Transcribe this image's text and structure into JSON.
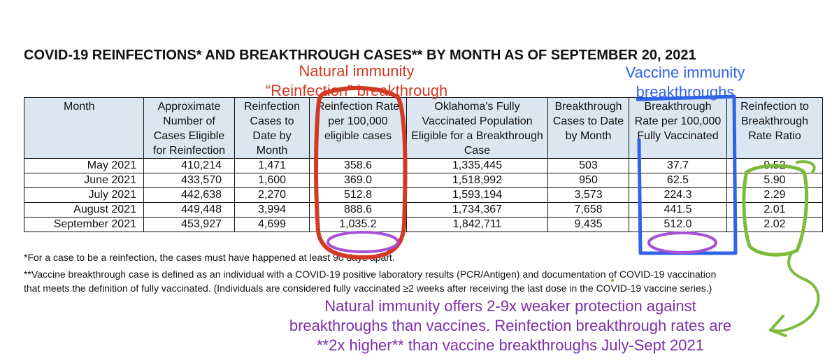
{
  "title": "COVID-19 REINFECTIONS* AND BREAKTHROUGH CASES** BY MONTH AS OF SEPTEMBER 20, 2021",
  "table": {
    "headers": [
      "Month",
      "Approximate Number of Cases Eligible for Reinfection",
      "Reinfection Cases to Date by Month",
      "Reinfection Rate per 100,000 eligible cases",
      "Oklahoma's Fully Vaccinated Population Eligible for a Breakthrough Case",
      "Breakthrough Cases to Date by Month",
      "Breakthrough Rate per 100,000 Fully Vaccinated",
      "Reinfection to Breakthrough Rate Ratio"
    ],
    "rows": [
      [
        "May 2021",
        "410,214",
        "1,471",
        "358.6",
        "1,335,445",
        "503",
        "37.7",
        "9.52"
      ],
      [
        "June 2021",
        "433,570",
        "1,600",
        "369.0",
        "1,518,992",
        "950",
        "62.5",
        "5.90"
      ],
      [
        "July 2021",
        "442,638",
        "2,270",
        "512.8",
        "1,593,194",
        "3,573",
        "224.3",
        "2.29"
      ],
      [
        "August 2021",
        "449,448",
        "3,994",
        "888.6",
        "1,734,367",
        "7,658",
        "441.5",
        "2.01"
      ],
      [
        "September 2021",
        "453,927",
        "4,699",
        "1,035.2",
        "1,842,711",
        "9,435",
        "512.0",
        "2.02"
      ]
    ]
  },
  "footnotes": [
    "*For a case to be a reinfection, the cases must have happened at least 90 days apart.",
    "**Vaccine breakthrough case is defined as an individual with a COVID-19 positive laboratory results (PCR/Antigen) and documentation of COVID-19 vaccination",
    "that meets the definition of fully vaccinated.  (Individuals are considered fully vaccinated ≥2 weeks after receiving the last dose in the COVID-19 vaccine series.)"
  ],
  "annotations": {
    "red": [
      "Natural immunity",
      "“Reinfection” breakthrough"
    ],
    "blue": [
      "Vaccine immunity",
      "breakthroughs"
    ],
    "purple": [
      "Natural immunity offers 2-9x weaker protection against",
      "breakthroughs than vaccines. Reinfection breakthrough rates are",
      "**2x higher** than vaccine breakthroughs July-Sept 2021"
    ]
  },
  "colors": {
    "header_fill": "#dce6f1",
    "annotation_red": "#d23a24",
    "annotation_blue": "#2f63e8",
    "annotation_green": "#7dbb3c",
    "annotation_purple": "#7b2fa8"
  }
}
